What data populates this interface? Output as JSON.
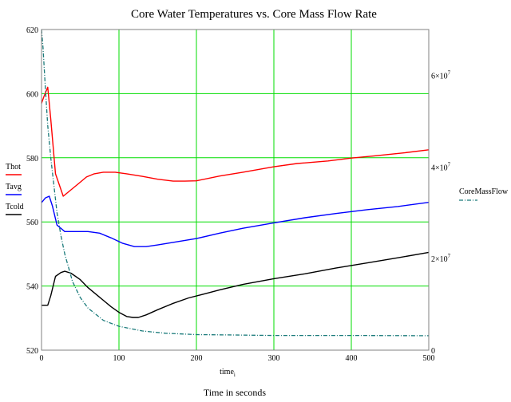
{
  "chart_data": {
    "type": "line",
    "title": "Core Water Temperatures vs. Core Mass Flow Rate",
    "xlabel": "time",
    "xlabel_subscript": "i",
    "x_caption": "Time in seconds",
    "xlim": [
      0,
      500
    ],
    "ylim": [
      520,
      620
    ],
    "y2lim": [
      0,
      70000000
    ],
    "x_ticks": [
      {
        "value": 0,
        "label": "0"
      },
      {
        "value": 100,
        "label": "100"
      },
      {
        "value": 200,
        "label": "200"
      },
      {
        "value": 300,
        "label": "300"
      },
      {
        "value": 400,
        "label": "400"
      },
      {
        "value": 500,
        "label": "500"
      }
    ],
    "y_ticks": [
      {
        "value": 520,
        "label": "520"
      },
      {
        "value": 540,
        "label": "540"
      },
      {
        "value": 560,
        "label": "560"
      },
      {
        "value": 580,
        "label": "580"
      },
      {
        "value": 600,
        "label": "600"
      },
      {
        "value": 620,
        "label": "620"
      }
    ],
    "y2_ticks": [
      {
        "value": 0,
        "label": "0",
        "exp": ""
      },
      {
        "value": 20000000,
        "label": "2×10",
        "exp": "7"
      },
      {
        "value": 40000000,
        "label": "4×10",
        "exp": "7"
      },
      {
        "value": 60000000,
        "label": "6×10",
        "exp": "7"
      }
    ],
    "grid": true,
    "series": [
      {
        "name": "Thot",
        "color": "#ff0000",
        "style": "solid",
        "axis": "left",
        "x": [
          0,
          3,
          8,
          12,
          18,
          28,
          38,
          48,
          58,
          68,
          80,
          95,
          110,
          130,
          150,
          170,
          185,
          200,
          230,
          260,
          300,
          330,
          370,
          400,
          430,
          470,
          500
        ],
        "y": [
          597,
          599,
          602,
          592,
          575,
          568,
          570,
          572,
          574,
          575,
          575.5,
          575.5,
          575,
          574.2,
          573.3,
          572.7,
          572.7,
          572.8,
          574.3,
          575.5,
          577.2,
          578.2,
          579,
          579.9,
          580.6,
          581.6,
          582.5
        ]
      },
      {
        "name": "Tavg",
        "color": "#0000ff",
        "style": "solid",
        "axis": "left",
        "x": [
          0,
          5,
          10,
          14,
          20,
          30,
          45,
          60,
          75,
          90,
          105,
          120,
          135,
          150,
          175,
          200,
          230,
          260,
          300,
          340,
          380,
          420,
          460,
          500
        ],
        "y": [
          566,
          567.5,
          568,
          565,
          559,
          557,
          557,
          557,
          556.5,
          555,
          553.3,
          552.3,
          552.3,
          552.8,
          553.8,
          554.8,
          556.5,
          558,
          559.7,
          561.3,
          562.6,
          563.8,
          564.8,
          566.1
        ]
      },
      {
        "name": "Tcold",
        "color": "#000000",
        "style": "solid",
        "axis": "left",
        "x": [
          0,
          8,
          12,
          18,
          25,
          30,
          38,
          50,
          60,
          75,
          90,
          100,
          110,
          118,
          125,
          135,
          150,
          170,
          190,
          210,
          230,
          260,
          300,
          340,
          380,
          420,
          460,
          500
        ],
        "y": [
          534,
          534,
          537,
          543,
          544.2,
          544.6,
          544,
          542,
          539.5,
          536.5,
          533.5,
          531.8,
          530.5,
          530.2,
          530.2,
          531,
          532.6,
          534.6,
          536.3,
          537.5,
          538.8,
          540.5,
          542.3,
          543.8,
          545.6,
          547.2,
          548.8,
          550.5
        ]
      },
      {
        "name": "CoreMassFlow",
        "color": "#1a7a7a",
        "style": "dash-dot",
        "axis": "right",
        "x": [
          0,
          2,
          5,
          8,
          12,
          16,
          20,
          25,
          30,
          40,
          50,
          60,
          80,
          100,
          130,
          160,
          200,
          250,
          300,
          400,
          500
        ],
        "y": [
          70000000,
          66000000,
          57000000,
          49000000,
          42000000,
          36000000,
          30000000,
          25000000,
          21000000,
          15000000,
          11500000,
          9200000,
          6500000,
          5200000,
          4200000,
          3700000,
          3400000,
          3300000,
          3200000,
          3200000,
          3150000
        ]
      }
    ],
    "legend": {
      "left_labels": [
        "Thot",
        "Tavg",
        "Tcold"
      ],
      "right_label": "CoreMassFlow",
      "position": "outside-left-and-right"
    }
  }
}
